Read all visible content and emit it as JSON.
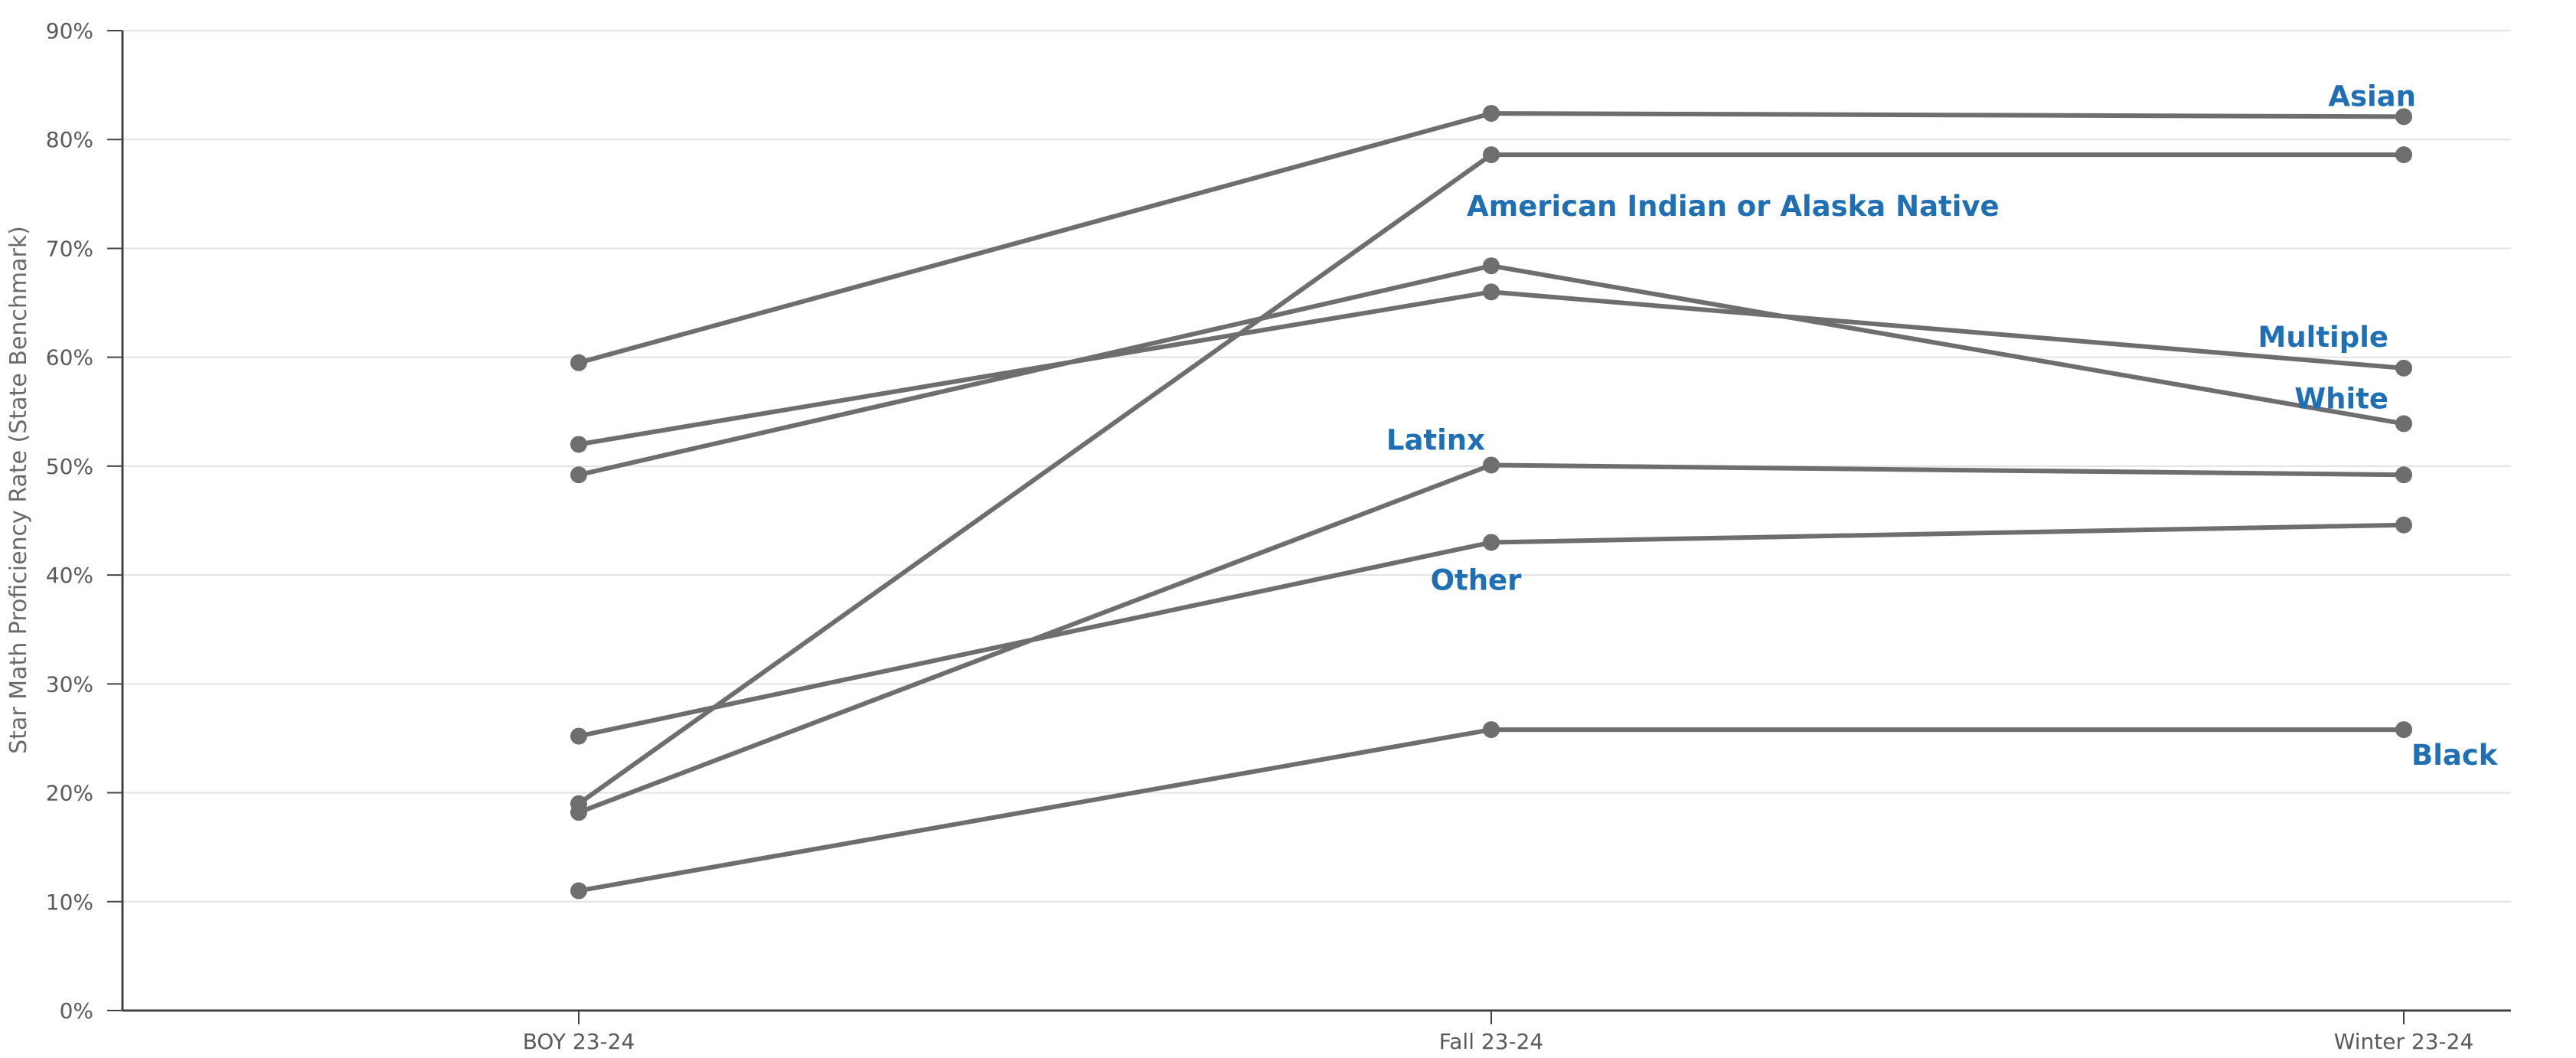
{
  "chart_data": {
    "type": "line",
    "title": "",
    "xlabel": "",
    "ylabel": "Star Math Proficiency Rate (State Benchmark)",
    "ylim": [
      0,
      90
    ],
    "yticks": [
      0,
      10,
      20,
      30,
      40,
      50,
      60,
      70,
      80,
      90
    ],
    "ytick_labels": [
      "0%",
      "10%",
      "20%",
      "30%",
      "40%",
      "50%",
      "60%",
      "70%",
      "80%",
      "90%"
    ],
    "categories": [
      "BOY 23-24",
      "Fall 23-24",
      "Winter 23-24"
    ],
    "grid": true,
    "legend": "none",
    "colors": {
      "line": "#6e6e6e",
      "marker": "#6e6e6e",
      "label": "#1f6fb5",
      "grid": "#e3e3e3",
      "axis": "#444444",
      "background": "#ffffff"
    },
    "series": [
      {
        "name": "Asian",
        "values": [
          59.5,
          82.4,
          82.1
        ]
      },
      {
        "name": "American Indian or Alaska Native",
        "values": [
          19.0,
          78.6,
          78.6
        ]
      },
      {
        "name": "Multiple",
        "values": [
          52.0,
          66.0,
          59.0
        ]
      },
      {
        "name": "White",
        "values": [
          49.2,
          68.4,
          53.9
        ]
      },
      {
        "name": "Latinx",
        "values": [
          18.2,
          50.1,
          49.2
        ]
      },
      {
        "name": "Other",
        "values": [
          25.2,
          43.0,
          44.6
        ]
      },
      {
        "name": "Black",
        "values": [
          11.0,
          25.8,
          25.8
        ]
      }
    ]
  }
}
